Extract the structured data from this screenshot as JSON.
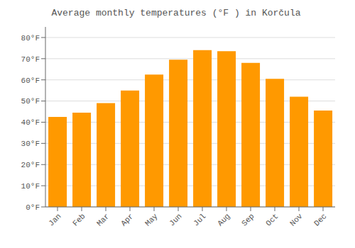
{
  "chart_data": {
    "type": "bar",
    "title": "Average monthly temperatures (°F ) in Korčula",
    "categories": [
      "Jan",
      "Feb",
      "Mar",
      "Apr",
      "May",
      "Jun",
      "Jul",
      "Aug",
      "Sep",
      "Oct",
      "Nov",
      "Dec"
    ],
    "values": [
      42.5,
      44.5,
      49.0,
      55.0,
      62.5,
      69.5,
      74.0,
      73.5,
      68.0,
      60.5,
      52.0,
      45.5
    ],
    "color": "#FF9900",
    "ylim": [
      0,
      85
    ],
    "yticks": [
      {
        "value": 0,
        "label": "0°F"
      },
      {
        "value": 10,
        "label": "10°F"
      },
      {
        "value": 20,
        "label": "20°F"
      },
      {
        "value": 30,
        "label": "30°F"
      },
      {
        "value": 40,
        "label": "40°F"
      },
      {
        "value": 50,
        "label": "50°F"
      },
      {
        "value": 60,
        "label": "60°F"
      },
      {
        "value": 70,
        "label": "70°F"
      },
      {
        "value": 80,
        "label": "80°F"
      }
    ],
    "grid": true
  }
}
